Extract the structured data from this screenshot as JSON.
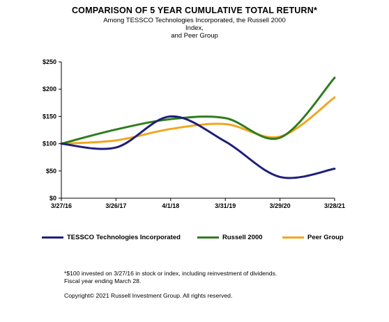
{
  "title": "COMPARISON OF 5 YEAR CUMULATIVE TOTAL RETURN*",
  "subtitle_line1": "Among TESSCO Technologies Incorporated, the Russell 2000 Index,",
  "subtitle_line2": "and Peer Group",
  "footnote_line1": "*$100 invested on 3/27/16 in stock or index, including reinvestment of dividends.",
  "footnote_line2": "Fiscal year ending March 28.",
  "copyright": "Copyright© 2021 Russell Investment Group. All rights reserved.",
  "chart_data": {
    "type": "line",
    "categories": [
      "3/27/16",
      "3/26/17",
      "4/1/18",
      "3/31/19",
      "3/29/20",
      "3/28/21"
    ],
    "ylim": [
      0,
      250
    ],
    "yticks": [
      0,
      50,
      100,
      150,
      200,
      250
    ],
    "ytick_labels": [
      "$0",
      "$50",
      "$100",
      "$150",
      "$200",
      "$250"
    ],
    "legend_position": "bottom",
    "grid": false,
    "series": [
      {
        "name": "TESSCO Technologies Incorporated",
        "color": "#1f1f7a",
        "values": [
          100,
          93,
          150,
          104,
          39,
          54
        ]
      },
      {
        "name": "Russell 2000",
        "color": "#2e7d1e",
        "values": [
          100,
          126,
          145,
          147,
          111,
          221
        ]
      },
      {
        "name": "Peer Group",
        "color": "#f2a51f",
        "values": [
          100,
          106,
          127,
          136,
          113,
          185
        ]
      }
    ]
  }
}
